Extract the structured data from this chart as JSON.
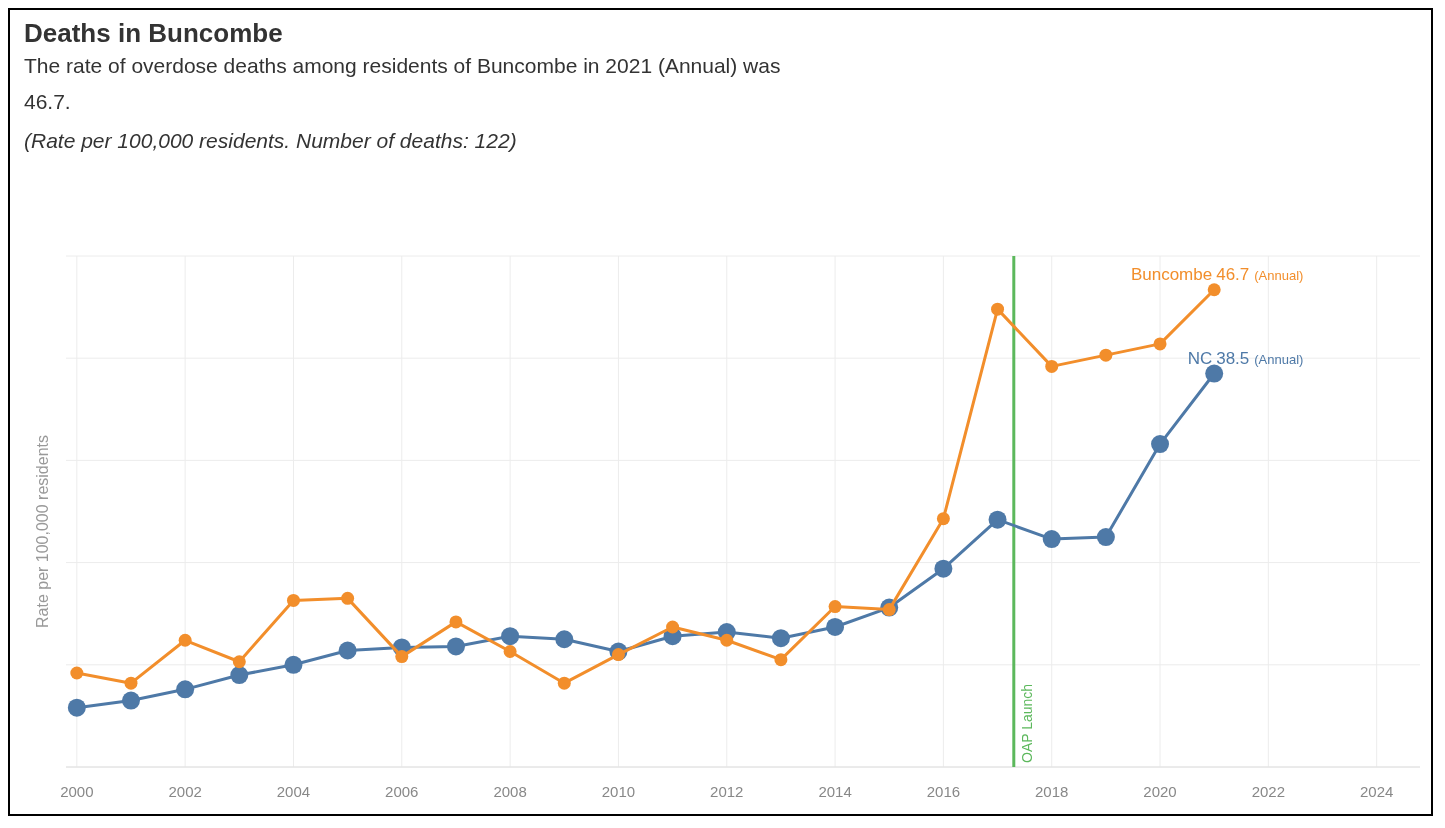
{
  "chart_data": {
    "type": "line",
    "title": "Deaths in Buncombe",
    "subtitle": "The rate of overdose deaths among residents of Buncombe in 2021 (Annual) was 46.7.",
    "ylabel": "Rate per 100,000 residents",
    "x": [
      2000,
      2001,
      2002,
      2003,
      2004,
      2005,
      2006,
      2007,
      2008,
      2009,
      2010,
      2011,
      2012,
      2013,
      2014,
      2015,
      2016,
      2017,
      2018,
      2019,
      2020,
      2021
    ],
    "xlim": [
      1999.8,
      2024.8
    ],
    "xticks": [
      2000,
      2002,
      2004,
      2006,
      2008,
      2010,
      2012,
      2014,
      2016,
      2018,
      2020,
      2022,
      2024
    ],
    "ylim": [
      0,
      50
    ],
    "yticks": [
      {
        "value": 0,
        "label": null
      },
      {
        "value": 10,
        "label": null
      },
      {
        "value": 20,
        "label": null
      },
      {
        "value": 30,
        "label": null
      },
      {
        "value": 40,
        "label": null
      },
      {
        "value": 50,
        "label": null
      }
    ],
    "tick_labels": "x",
    "series": [
      {
        "name": "NC",
        "color": "#4e79a7",
        "values": [
          5.8,
          6.5,
          7.6,
          9.0,
          10.0,
          11.4,
          11.7,
          11.8,
          12.8,
          12.5,
          11.3,
          12.8,
          13.2,
          12.6,
          13.7,
          15.6,
          19.4,
          24.2,
          22.3,
          22.5,
          31.6,
          38.5
        ],
        "value_labels": [
          null,
          null,
          null,
          null,
          null,
          null,
          null,
          null,
          null,
          null,
          null,
          null,
          null,
          null,
          null,
          null,
          null,
          null,
          null,
          null,
          null,
          "38.5"
        ]
      },
      {
        "name": "Buncombe",
        "color": "#f28e2b",
        "values": [
          9.2,
          8.2,
          12.4,
          10.3,
          16.3,
          16.5,
          10.8,
          14.2,
          11.3,
          8.2,
          11.0,
          13.7,
          12.4,
          10.5,
          15.7,
          15.4,
          24.3,
          44.8,
          39.2,
          40.3,
          41.4,
          46.7
        ],
        "value_labels": [
          null,
          null,
          null,
          null,
          null,
          null,
          null,
          null,
          null,
          null,
          null,
          null,
          null,
          null,
          null,
          null,
          null,
          null,
          null,
          null,
          null,
          "46.7"
        ]
      }
    ],
    "ref_lines": [
      {
        "axis": "x",
        "value": 2017.3,
        "label": "OAP Launch",
        "color": "#5cb85c"
      }
    ],
    "annotations": [
      "(Rate per 100,000 residents. Number of deaths: 122)",
      "(Annual)",
      "(Annual)"
    ],
    "grid": true,
    "marker": "circle",
    "line_style": "solid"
  }
}
